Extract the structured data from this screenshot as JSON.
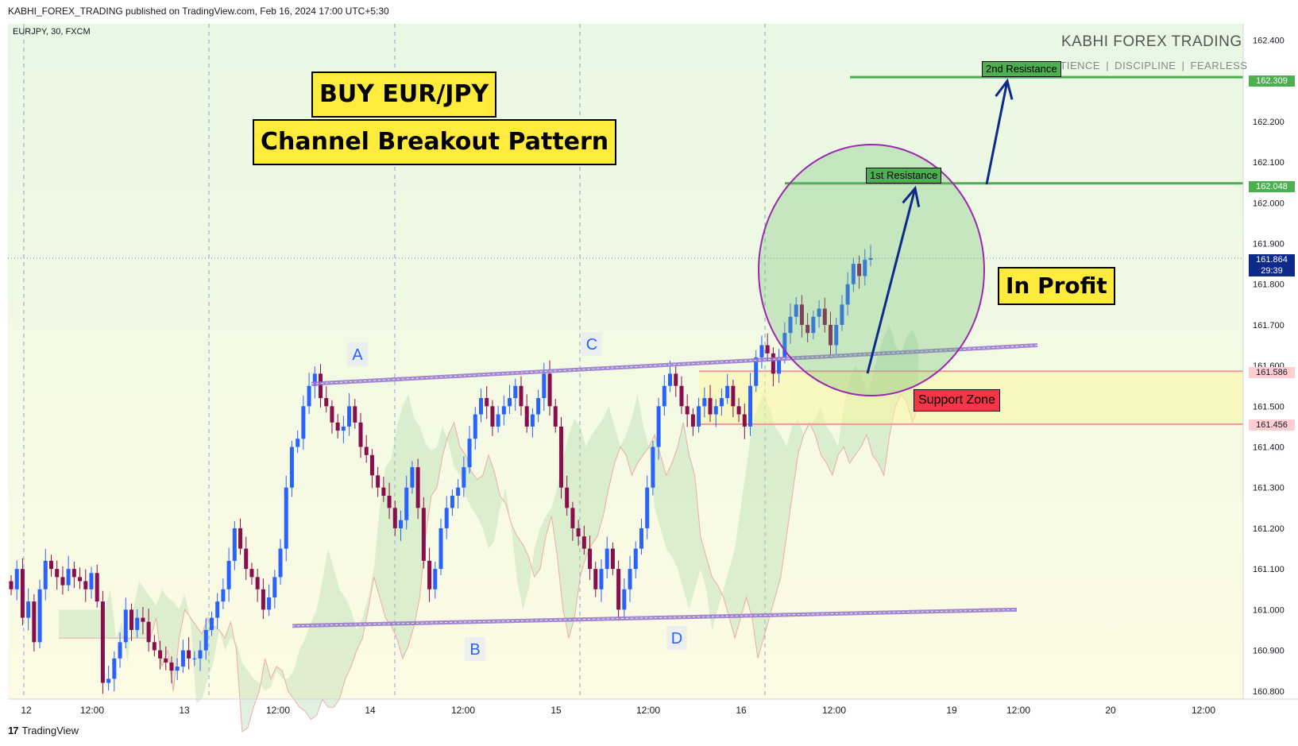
{
  "header": {
    "published": "KABHI_FOREX_TRADING published on TradingView.com, Feb 16, 2024 17:00 UTC+5:30",
    "symbol": "EURJPY, 30, FXCM"
  },
  "branding": {
    "name": "KABHI FOREX TRADING",
    "tagline": "PATIENCE  |  DISCIPLINE  |  FEARLESS"
  },
  "footer": {
    "logo": "17",
    "name": "TradingView"
  },
  "annotations": {
    "title_1": "BUY EUR/JPY",
    "title_2": "Channel Breakout Pattern",
    "in_profit": "In Profit",
    "support_zone": "Support Zone",
    "resistance_1": "1st Resistance",
    "resistance_2": "2nd Resistance",
    "points": [
      "A",
      "B",
      "C",
      "D"
    ]
  },
  "colors": {
    "bull": "#2962ff",
    "bear": "#880e4f",
    "resistance": "#4caf50",
    "support": "#ef9a9a",
    "channel": "#9575cd",
    "arrow": "#0d2a8a",
    "circle": "#9c27b0",
    "label_yellow": "#ffeb3b",
    "support_red": "#f23645"
  },
  "chart_data": {
    "type": "candlestick",
    "symbol": "EURJPY",
    "timeframe": "30",
    "ylim": [
      160.78,
      162.44
    ],
    "y_ticks": [
      160.8,
      160.9,
      161.0,
      161.1,
      161.2,
      161.3,
      161.4,
      161.5,
      161.6,
      161.7,
      161.8,
      161.9,
      162.0,
      162.1,
      162.2,
      162.4
    ],
    "x_ticks": [
      "12",
      "12:00",
      "13",
      "12:00",
      "14",
      "12:00",
      "15",
      "12:00",
      "16",
      "12:00",
      "19",
      "12:00",
      "20",
      "12:00"
    ],
    "levels": [
      {
        "name": "2nd Resistance",
        "price": 162.309
      },
      {
        "name": "1st Resistance",
        "price": 162.048
      },
      {
        "name": "Support top",
        "price": 161.586
      },
      {
        "name": "Support bottom",
        "price": 161.456
      }
    ],
    "last_price": 161.864,
    "countdown": "29:39",
    "price_labels": [
      "162.309",
      "162.048",
      "161.864",
      "161.586",
      "161.456"
    ],
    "closes": [
      161.05,
      161.1,
      160.98,
      161.02,
      160.92,
      161.05,
      161.12,
      161.1,
      161.08,
      161.06,
      161.1,
      161.08,
      161.07,
      161.05,
      161.09,
      161.02,
      160.82,
      160.83,
      160.88,
      160.92,
      161.0,
      160.95,
      160.98,
      160.97,
      160.92,
      160.9,
      160.88,
      160.87,
      160.85,
      160.86,
      160.9,
      160.88,
      160.88,
      160.9,
      160.95,
      160.98,
      161.02,
      161.05,
      161.12,
      161.2,
      161.15,
      161.1,
      161.08,
      161.05,
      161.0,
      161.03,
      161.08,
      161.15,
      161.3,
      161.4,
      161.42,
      161.5,
      161.55,
      161.58,
      161.52,
      161.5,
      161.46,
      161.44,
      161.45,
      161.5,
      161.46,
      161.4,
      161.38,
      161.33,
      161.3,
      161.28,
      161.25,
      161.2,
      161.22,
      161.3,
      161.35,
      161.25,
      161.12,
      161.05,
      161.1,
      161.2,
      161.25,
      161.28,
      161.3,
      161.35,
      161.42,
      161.48,
      161.52,
      161.5,
      161.45,
      161.48,
      161.5,
      161.52,
      161.55,
      161.5,
      161.45,
      161.48,
      161.52,
      161.58,
      161.5,
      161.45,
      161.3,
      161.25,
      161.2,
      161.18,
      161.15,
      161.1,
      161.05,
      161.1,
      161.15,
      161.1,
      161.0,
      161.05,
      161.1,
      161.15,
      161.2,
      161.3,
      161.4,
      161.5,
      161.55,
      161.58,
      161.55,
      161.5,
      161.48,
      161.45,
      161.5,
      161.52,
      161.48,
      161.5,
      161.52,
      161.55,
      161.5,
      161.48,
      161.45,
      161.55,
      161.62,
      161.65,
      161.63,
      161.58,
      161.62,
      161.68,
      161.72,
      161.75,
      161.7,
      161.68,
      161.72,
      161.74,
      161.7,
      161.65,
      161.7,
      161.75,
      161.8,
      161.85,
      161.82,
      161.86,
      161.864
    ]
  }
}
